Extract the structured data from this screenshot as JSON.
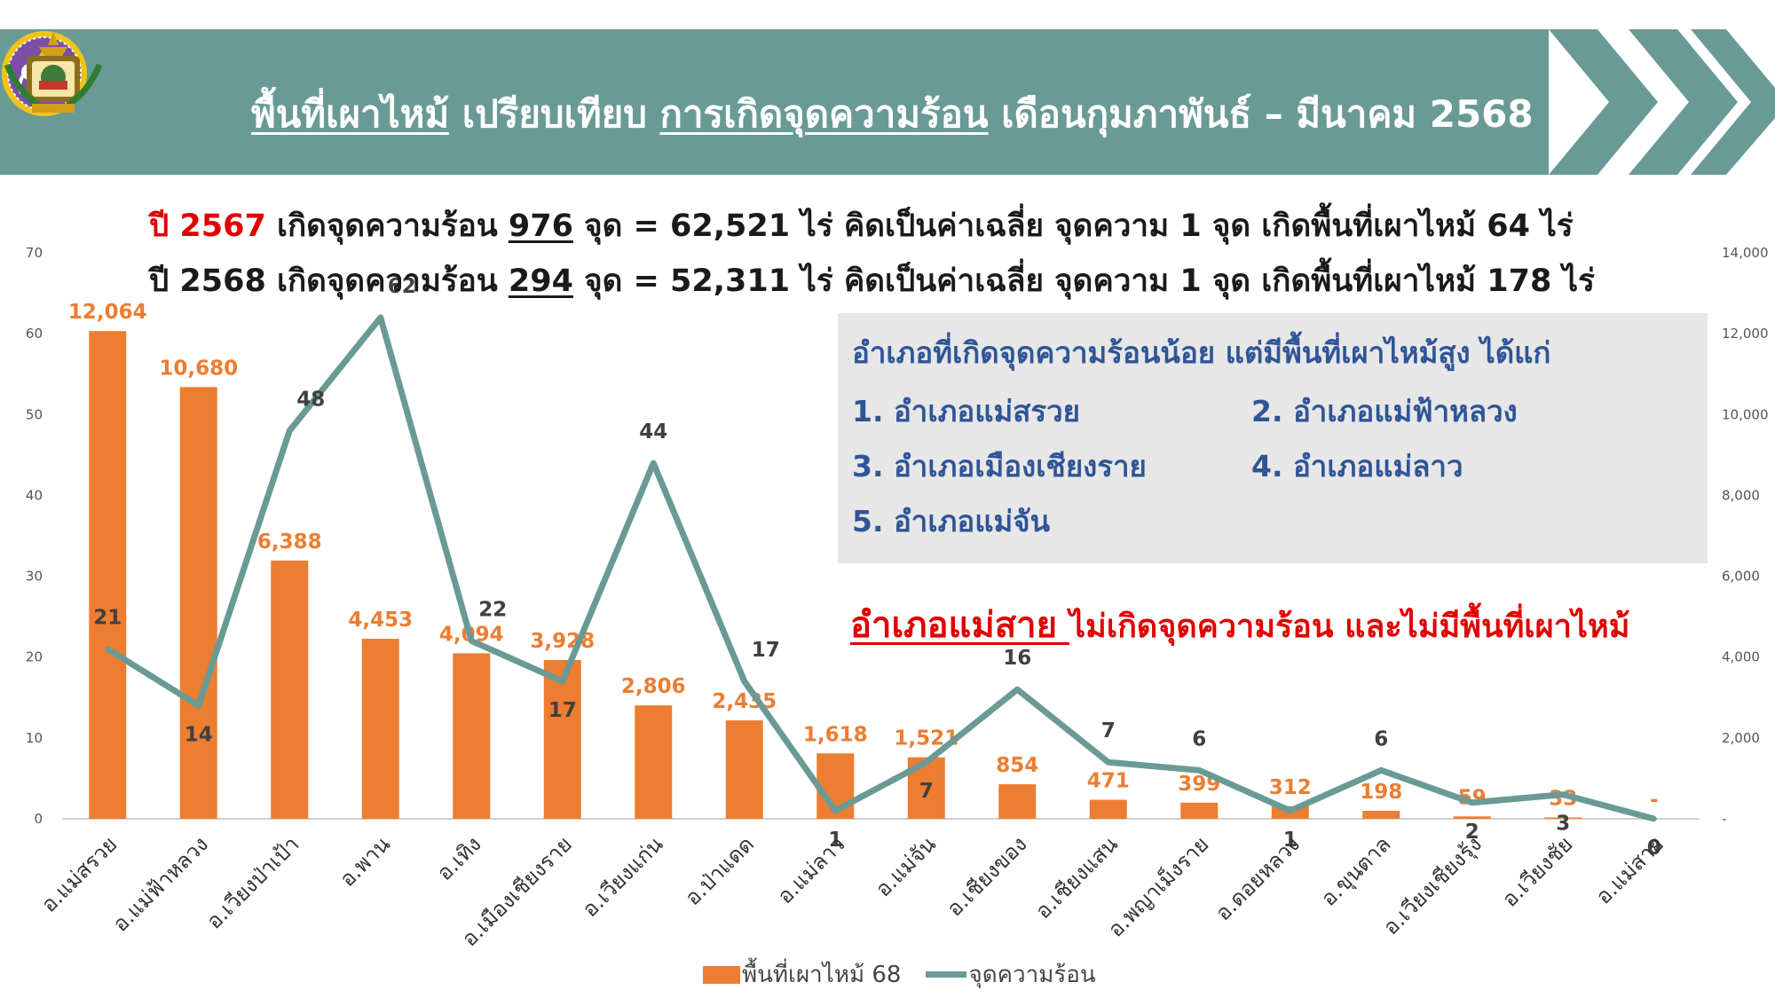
{
  "colors": {
    "header_bg": "#6a9a96",
    "bar": "#ed7d31",
    "line": "#6a9a96",
    "highlight_red": "#e00000",
    "info_blue": "#2f5597",
    "info_bg": "#e7e7e7"
  },
  "header": {
    "title_part1": "พื้นที่เผาไหม้",
    "title_part2": " เปรียบเทียบ ",
    "title_part3": "การเกิดจุดความร้อน",
    "title_part4": " เดือนกุมภาพันธ์ – มีนาคม 2568",
    "logo_left": "provincial-seal-elephant-logo",
    "logo_right": "government-emblem-logo"
  },
  "summary": {
    "line1": {
      "year": "ปี 2567",
      "text_a": " เกิดจุดความร้อน ",
      "count": "976",
      "text_b": " จุด = 62,521 ไร่ คิดเป็นค่าเฉลี่ย จุดความ 1 จุด เกิดพื้นที่เผาไหม้ 64  ไร่"
    },
    "line2": {
      "year": "ปี 2568",
      "text_a": " เกิดจุดความร้อน ",
      "count": "294",
      "text_b": " จุด = 52,311 ไร่ คิดเป็นค่าเฉลี่ย จุดความ 1 จุด เกิดพื้นที่เผาไหม้ 178 ไร่"
    }
  },
  "info_box": {
    "heading": "อำเภอที่เกิดจุดความร้อนน้อย แต่มีพื้นที่เผาไหม้สูง ได้แก่",
    "items": [
      "1. อำเภอแม่สรวย",
      "2. อำเภอแม่ฟ้าหลวง",
      "3. อำเภอเมืองเชียงราย",
      "4. อำเภอแม่ลาว",
      "5. อำเภอแม่จัน"
    ]
  },
  "note": {
    "strong": "อำเภอแม่สาย ",
    "rest": "ไม่เกิดจุดความร้อน และไม่มีพื้นที่เผาไหม้"
  },
  "legend": {
    "bar_label": "พื้นที่เผาไหม้ 68",
    "line_label": "จุดความร้อน"
  },
  "chart_data": {
    "type": "bar",
    "categories": [
      "อ.แม่สรวย",
      "อ.แม่ฟ้าหลวง",
      "อ.เวียงป่าเป้า",
      "อ.พาน",
      "อ.เทิง",
      "อ.เมืองเชียงราย",
      "อ.เวียงแก่น",
      "อ.ป่าแดด",
      "อ.แม่ลาว",
      "อ.แม่จัน",
      "อ.เชียงของ",
      "อ.เชียงแสน",
      "อ.พญาเม็งราย",
      "อ.ดอยหลวง",
      "อ.ขุนตาล",
      "อ.เวียงเชียงรุ้ง",
      "อ.เวียงชัย",
      "อ.แม่สาย"
    ],
    "series": [
      {
        "name": "พื้นที่เผาไหม้ 68",
        "type": "bar",
        "axis": "right",
        "values": [
          12064,
          10680,
          6388,
          4453,
          4094,
          3928,
          2806,
          2435,
          1618,
          1521,
          854,
          471,
          399,
          312,
          198,
          59,
          33,
          0
        ],
        "labels": [
          "12,064",
          "10,680",
          "6,388",
          "4,453",
          "4,094",
          "3,928",
          "2,806",
          "2,435",
          "1,618",
          "1,521",
          "854",
          "471",
          "399",
          "312",
          "198",
          "59",
          "33",
          "-"
        ]
      },
      {
        "name": "จุดความร้อน",
        "type": "line",
        "axis": "left",
        "values": [
          21,
          14,
          48,
          62,
          22,
          17,
          44,
          17,
          1,
          7,
          16,
          7,
          6,
          1,
          6,
          2,
          3,
          0
        ],
        "labels": [
          "21",
          "14",
          "48",
          "62",
          "22",
          "17",
          "44",
          "17",
          "1",
          "7",
          "16",
          "7",
          "6",
          "1",
          "6",
          "2",
          "3",
          "0"
        ]
      }
    ],
    "left_axis": {
      "ylim": [
        0,
        70
      ],
      "ticks": [
        "0",
        "10",
        "20",
        "30",
        "40",
        "50",
        "60",
        "70"
      ]
    },
    "right_axis": {
      "ylim": [
        0,
        14000
      ],
      "ticks": [
        "-",
        "2,000",
        "4,000",
        "6,000",
        "8,000",
        "10,000",
        "12,000",
        "14,000"
      ]
    },
    "grid": false,
    "legend_position": "bottom"
  }
}
